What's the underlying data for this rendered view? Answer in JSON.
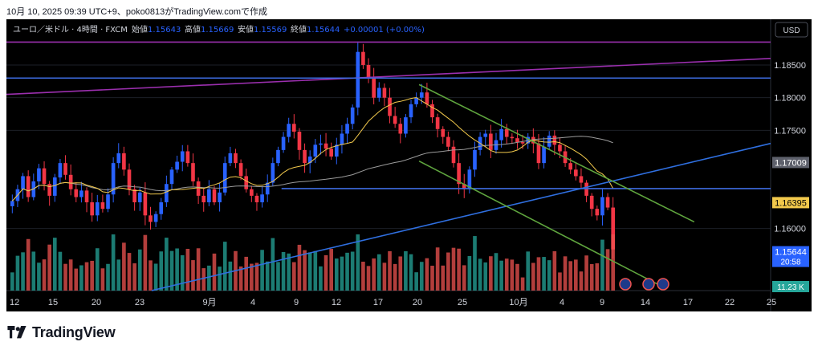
{
  "snapshot_line": "10月 10, 2025 09:39 UTC+9、poko0813がTradingView.comで作成",
  "brand": "TradingView",
  "chart_data": {
    "type": "candlestick",
    "title": "ユーロ／米ドル · 4時間 · FXCM",
    "ohlc_line": {
      "o_label": "始値",
      "o": "1.15643",
      "h_label": "高値",
      "h": "1.15669",
      "l_label": "安値",
      "l": "1.15569",
      "c_label": "終値",
      "c": "1.15644",
      "chg": "+0.00001 (+0.00%)"
    },
    "currency_button": "USD",
    "y_axis": {
      "ticks": [
        "1.18500",
        "1.18000",
        "1.17500",
        "1.16000"
      ],
      "tick_values": [
        1.185,
        1.18,
        1.175,
        1.16
      ],
      "range": [
        1.1505,
        1.1915
      ]
    },
    "x_axis_labels": [
      "12",
      "15",
      "20",
      "23",
      "9月",
      "4",
      "9",
      "12",
      "17",
      "20",
      "25",
      "10月",
      "4",
      "9",
      "14",
      "17",
      "22",
      "25"
    ],
    "price_labels": [
      {
        "text": "1.17009",
        "value": 1.17009,
        "kind": "ma"
      },
      {
        "text": "1.16395",
        "value": 1.16395,
        "kind": "ma_fast"
      },
      {
        "text": "1.15644",
        "value": 1.15644,
        "kind": "last"
      }
    ],
    "countdown": "20:58",
    "volume_label": "11.23 K",
    "close_path": [
      1.1642,
      1.166,
      1.168,
      1.1648,
      1.1672,
      1.1692,
      1.1668,
      1.165,
      1.1678,
      1.17,
      1.1682,
      1.166,
      1.1648,
      1.1658,
      1.164,
      1.162,
      1.164,
      1.163,
      1.1652,
      1.17,
      1.1715,
      1.169,
      1.166,
      1.164,
      1.1655,
      1.162,
      1.161,
      1.1622,
      1.164,
      1.1668,
      1.169,
      1.1702,
      1.1718,
      1.17,
      1.1672,
      1.165,
      1.164,
      1.166,
      1.164,
      1.1655,
      1.17,
      1.1715,
      1.17,
      1.168,
      1.166,
      1.165,
      1.164,
      1.1652,
      1.167,
      1.17,
      1.172,
      1.174,
      1.176,
      1.1748,
      1.172,
      1.17,
      1.171,
      1.1728,
      1.173,
      1.1722,
      1.171,
      1.1728,
      1.1745,
      1.176,
      1.1785,
      1.187,
      1.185,
      1.183,
      1.18,
      1.1815,
      1.18,
      1.1772,
      1.176,
      1.1745,
      1.177,
      1.179,
      1.18,
      1.1808,
      1.179,
      1.177,
      1.1752,
      1.174,
      1.1725,
      1.17,
      1.1668,
      1.166,
      1.169,
      1.172,
      1.174,
      1.1745,
      1.172,
      1.1735,
      1.1752,
      1.174,
      1.1738,
      1.1732,
      1.173,
      1.174,
      1.173,
      1.17,
      1.1725,
      1.1742,
      1.1728,
      1.1718,
      1.17,
      1.169,
      1.168,
      1.167,
      1.165,
      1.163,
      1.162,
      1.1648,
      1.1632,
      1.1568
    ],
    "moving_averages": [
      {
        "label": "1.16395",
        "color": "#f2c94c"
      },
      {
        "label": "1.17009",
        "color": "#9b9b9b"
      }
    ],
    "trendlines": [
      {
        "name": "resistance",
        "color": "#9b2fae",
        "from": [
          0,
          1.1805
        ],
        "to": [
          1,
          1.186
        ]
      },
      {
        "name": "horizontal-top",
        "color": "#3d6be0",
        "from": [
          0,
          1.183
        ],
        "to": [
          1,
          1.183
        ]
      },
      {
        "name": "horizontal-mid",
        "color": "#3d6be0",
        "from": [
          0.36,
          1.1661
        ],
        "to": [
          1,
          1.1661
        ]
      },
      {
        "name": "purple-top",
        "color": "#9b2fae",
        "from": [
          0,
          1.1885
        ],
        "to": [
          1,
          1.1885
        ]
      },
      {
        "name": "rising-support",
        "color": "#2f6fe0",
        "from": [
          0.19,
          1.1505
        ],
        "to": [
          1,
          1.173
        ]
      },
      {
        "name": "channel-upper",
        "color": "#5fa53e",
        "from": [
          0.54,
          1.182
        ],
        "to": [
          0.9,
          1.161
        ]
      },
      {
        "name": "channel-lower",
        "color": "#5fa53e",
        "from": [
          0.54,
          1.1703
        ],
        "to": [
          0.86,
          1.151
        ]
      }
    ],
    "colors": {
      "bull": "#2962ff",
      "bear": "#f23645",
      "vol_bull": "#26a69a",
      "vol_bear": "#ef5350",
      "ma_fast": "#f2c94c",
      "ma_slow": "#9b9b9b",
      "bg": "#000000"
    },
    "event_icons": [
      "us-flag-icon",
      "eu-flag-icon",
      "us-flag-icon"
    ],
    "grid": true,
    "legend_position": "top-left"
  }
}
